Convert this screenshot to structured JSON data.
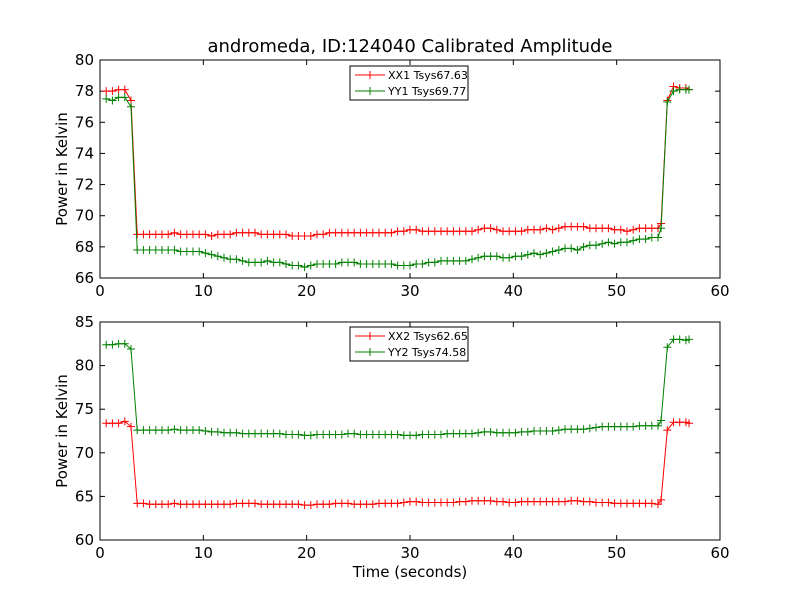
{
  "figure": {
    "title": "andromeda, ID:124040 Calibrated Amplitude"
  },
  "chart_data": [
    {
      "type": "line",
      "title": "andromeda, ID:124040 Calibrated Amplitude",
      "xlabel": "",
      "ylabel": "Power in Kelvin",
      "xlim": [
        0,
        60
      ],
      "ylim": [
        66,
        80
      ],
      "xticks": [
        0,
        10,
        20,
        30,
        40,
        50,
        60
      ],
      "yticks": [
        66,
        68,
        70,
        72,
        74,
        76,
        78,
        80
      ],
      "grid": false,
      "legend": "top-center",
      "x": [
        0.6,
        1.2,
        1.8,
        2.4,
        3.0,
        3.6,
        4.2,
        4.8,
        5.4,
        6.0,
        6.6,
        7.2,
        7.8,
        8.4,
        9.0,
        9.6,
        10.2,
        10.8,
        11.4,
        12.0,
        12.6,
        13.2,
        13.8,
        14.4,
        15.0,
        15.6,
        16.2,
        16.8,
        17.4,
        18.0,
        18.6,
        19.2,
        19.8,
        20.4,
        21.0,
        21.6,
        22.2,
        22.8,
        23.4,
        24.0,
        24.6,
        25.2,
        25.8,
        26.4,
        27.0,
        27.6,
        28.2,
        28.8,
        29.4,
        30.0,
        30.6,
        31.2,
        31.8,
        32.4,
        33.0,
        33.6,
        34.2,
        34.8,
        35.4,
        36.0,
        36.6,
        37.2,
        37.8,
        38.4,
        39.0,
        39.6,
        40.2,
        40.8,
        41.4,
        42.0,
        42.6,
        43.2,
        43.8,
        44.4,
        45.0,
        45.6,
        46.2,
        46.8,
        47.4,
        48.0,
        48.6,
        49.2,
        49.8,
        50.4,
        51.0,
        51.6,
        52.2,
        52.8,
        53.4,
        54.0,
        54.3,
        54.9,
        55.5,
        56.1,
        56.7,
        57.0
      ],
      "series": [
        {
          "name": "XX1 Tsys67.63",
          "color": "#ff0000",
          "values": [
            78.0,
            78.0,
            78.1,
            78.1,
            77.4,
            68.8,
            68.8,
            68.8,
            68.8,
            68.8,
            68.8,
            68.9,
            68.8,
            68.8,
            68.8,
            68.8,
            68.8,
            68.7,
            68.8,
            68.8,
            68.8,
            68.9,
            68.9,
            68.9,
            68.9,
            68.8,
            68.8,
            68.8,
            68.8,
            68.8,
            68.7,
            68.7,
            68.7,
            68.7,
            68.8,
            68.8,
            68.9,
            68.9,
            68.9,
            68.9,
            68.9,
            68.9,
            68.9,
            68.9,
            68.9,
            68.9,
            68.9,
            69.0,
            69.0,
            69.1,
            69.1,
            69.0,
            69.0,
            69.0,
            69.0,
            69.0,
            69.0,
            69.0,
            69.0,
            69.0,
            69.1,
            69.2,
            69.2,
            69.1,
            69.0,
            69.0,
            69.0,
            69.0,
            69.1,
            69.1,
            69.1,
            69.2,
            69.1,
            69.2,
            69.3,
            69.3,
            69.3,
            69.3,
            69.2,
            69.2,
            69.2,
            69.2,
            69.1,
            69.1,
            69.0,
            69.1,
            69.2,
            69.2,
            69.2,
            69.2,
            69.5,
            77.4,
            78.3,
            78.2,
            78.2,
            78.1
          ]
        },
        {
          "name": "YY1 Tsys69.77",
          "color": "#008000",
          "values": [
            77.5,
            77.4,
            77.6,
            77.6,
            77.0,
            67.8,
            67.8,
            67.8,
            67.8,
            67.8,
            67.8,
            67.8,
            67.7,
            67.7,
            67.7,
            67.7,
            67.6,
            67.5,
            67.4,
            67.3,
            67.2,
            67.2,
            67.1,
            67.0,
            67.0,
            67.0,
            67.1,
            67.0,
            67.0,
            66.9,
            66.8,
            66.8,
            66.7,
            66.8,
            66.9,
            66.9,
            66.9,
            66.9,
            67.0,
            67.0,
            67.0,
            66.9,
            66.9,
            66.9,
            66.9,
            66.9,
            66.9,
            66.8,
            66.8,
            66.8,
            66.9,
            66.9,
            67.0,
            67.0,
            67.1,
            67.1,
            67.1,
            67.1,
            67.1,
            67.2,
            67.3,
            67.4,
            67.4,
            67.4,
            67.3,
            67.3,
            67.4,
            67.4,
            67.5,
            67.6,
            67.5,
            67.6,
            67.7,
            67.8,
            67.9,
            67.9,
            67.8,
            68.0,
            68.1,
            68.1,
            68.2,
            68.3,
            68.2,
            68.3,
            68.3,
            68.4,
            68.5,
            68.5,
            68.6,
            68.6,
            69.2,
            77.3,
            78.0,
            78.1,
            78.1,
            78.1
          ]
        }
      ]
    },
    {
      "type": "line",
      "title": "",
      "xlabel": "Time (seconds)",
      "ylabel": "Power in Kelvin",
      "xlim": [
        0,
        60
      ],
      "ylim": [
        60,
        85
      ],
      "xticks": [
        0,
        10,
        20,
        30,
        40,
        50,
        60
      ],
      "yticks": [
        60,
        65,
        70,
        75,
        80,
        85
      ],
      "grid": false,
      "legend": "top-center",
      "x": [
        0.6,
        1.2,
        1.8,
        2.4,
        3.0,
        3.6,
        4.2,
        4.8,
        5.4,
        6.0,
        6.6,
        7.2,
        7.8,
        8.4,
        9.0,
        9.6,
        10.2,
        10.8,
        11.4,
        12.0,
        12.6,
        13.2,
        13.8,
        14.4,
        15.0,
        15.6,
        16.2,
        16.8,
        17.4,
        18.0,
        18.6,
        19.2,
        19.8,
        20.4,
        21.0,
        21.6,
        22.2,
        22.8,
        23.4,
        24.0,
        24.6,
        25.2,
        25.8,
        26.4,
        27.0,
        27.6,
        28.2,
        28.8,
        29.4,
        30.0,
        30.6,
        31.2,
        31.8,
        32.4,
        33.0,
        33.6,
        34.2,
        34.8,
        35.4,
        36.0,
        36.6,
        37.2,
        37.8,
        38.4,
        39.0,
        39.6,
        40.2,
        40.8,
        41.4,
        42.0,
        42.6,
        43.2,
        43.8,
        44.4,
        45.0,
        45.6,
        46.2,
        46.8,
        47.4,
        48.0,
        48.6,
        49.2,
        49.8,
        50.4,
        51.0,
        51.6,
        52.2,
        52.8,
        53.4,
        54.0,
        54.3,
        54.9,
        55.5,
        56.1,
        56.7,
        57.0
      ],
      "series": [
        {
          "name": "XX2 Tsys62.65",
          "color": "#ff0000",
          "values": [
            73.4,
            73.4,
            73.4,
            73.6,
            73.0,
            64.2,
            64.2,
            64.1,
            64.1,
            64.1,
            64.1,
            64.2,
            64.1,
            64.1,
            64.1,
            64.1,
            64.1,
            64.1,
            64.1,
            64.1,
            64.1,
            64.2,
            64.2,
            64.2,
            64.2,
            64.1,
            64.1,
            64.1,
            64.1,
            64.1,
            64.1,
            64.1,
            64.0,
            64.0,
            64.1,
            64.1,
            64.1,
            64.2,
            64.2,
            64.2,
            64.1,
            64.1,
            64.1,
            64.1,
            64.2,
            64.2,
            64.2,
            64.2,
            64.3,
            64.4,
            64.4,
            64.3,
            64.3,
            64.3,
            64.3,
            64.3,
            64.3,
            64.4,
            64.4,
            64.5,
            64.5,
            64.5,
            64.5,
            64.4,
            64.4,
            64.3,
            64.3,
            64.4,
            64.4,
            64.4,
            64.4,
            64.4,
            64.4,
            64.4,
            64.4,
            64.5,
            64.5,
            64.4,
            64.4,
            64.3,
            64.3,
            64.3,
            64.2,
            64.2,
            64.2,
            64.2,
            64.2,
            64.2,
            64.2,
            64.1,
            64.6,
            72.6,
            73.5,
            73.5,
            73.5,
            73.4
          ]
        },
        {
          "name": "YY2 Tsys74.58",
          "color": "#008000",
          "values": [
            82.4,
            82.4,
            82.5,
            82.5,
            81.9,
            72.6,
            72.6,
            72.6,
            72.6,
            72.6,
            72.6,
            72.7,
            72.6,
            72.6,
            72.6,
            72.6,
            72.5,
            72.4,
            72.4,
            72.3,
            72.3,
            72.3,
            72.2,
            72.2,
            72.2,
            72.2,
            72.2,
            72.2,
            72.2,
            72.1,
            72.1,
            72.1,
            72.0,
            72.0,
            72.1,
            72.1,
            72.1,
            72.1,
            72.1,
            72.2,
            72.2,
            72.1,
            72.1,
            72.1,
            72.1,
            72.1,
            72.1,
            72.1,
            72.0,
            72.0,
            72.0,
            72.1,
            72.1,
            72.1,
            72.1,
            72.2,
            72.2,
            72.2,
            72.2,
            72.2,
            72.3,
            72.4,
            72.4,
            72.3,
            72.3,
            72.3,
            72.3,
            72.4,
            72.4,
            72.5,
            72.5,
            72.5,
            72.5,
            72.6,
            72.7,
            72.7,
            72.7,
            72.7,
            72.8,
            72.9,
            73.0,
            73.0,
            73.0,
            73.0,
            73.0,
            73.0,
            73.1,
            73.1,
            73.1,
            73.1,
            73.7,
            82.1,
            83.0,
            83.0,
            82.9,
            83.0
          ]
        }
      ]
    }
  ]
}
